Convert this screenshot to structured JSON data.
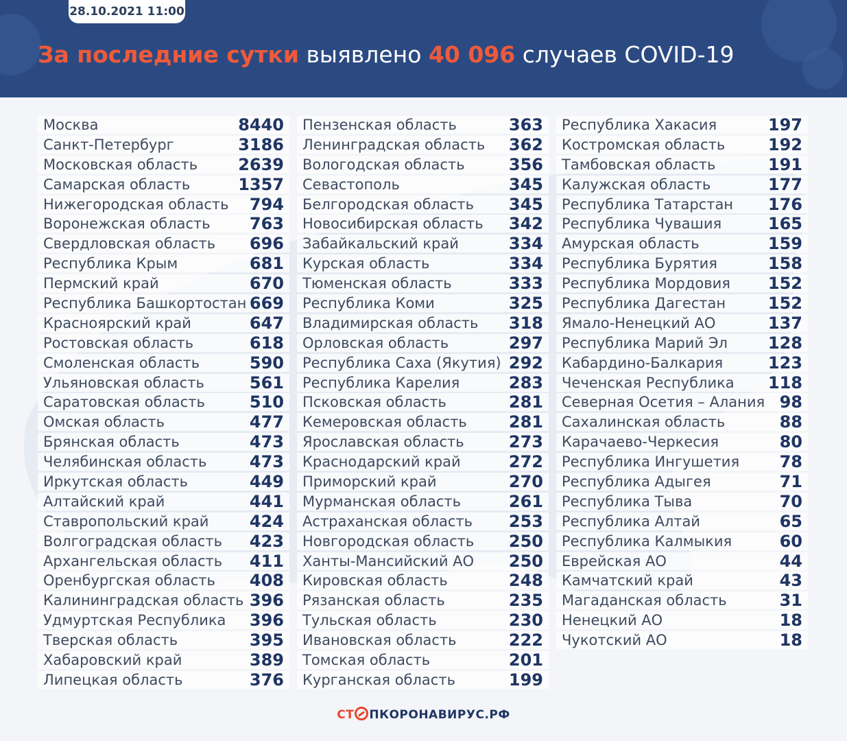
{
  "header": {
    "date": "28.10.2021 11:00",
    "headline_part1": "За последние сутки",
    "headline_part2": " выявлено ",
    "headline_count": "40 096",
    "headline_part3": " случаев COVID-19"
  },
  "colors": {
    "header_bg": "#2c4a82",
    "accent": "#ef5a3a",
    "number": "#1f3563",
    "row_bg": "#ffffff"
  },
  "columns": [
    [
      {
        "name": "Москва",
        "value": "8440"
      },
      {
        "name": "Санкт-Петербург",
        "value": "3186"
      },
      {
        "name": "Московская область",
        "value": "2639"
      },
      {
        "name": "Самарская область",
        "value": "1357"
      },
      {
        "name": "Нижегородская область",
        "value": "794"
      },
      {
        "name": "Воронежская область",
        "value": "763"
      },
      {
        "name": "Свердловская область",
        "value": "696"
      },
      {
        "name": "Республика Крым",
        "value": "681"
      },
      {
        "name": "Пермский край",
        "value": "670"
      },
      {
        "name": "Республика Башкортостан",
        "value": "669"
      },
      {
        "name": "Красноярский край",
        "value": "647"
      },
      {
        "name": "Ростовская область",
        "value": "618"
      },
      {
        "name": "Смоленская область",
        "value": "590"
      },
      {
        "name": "Ульяновская область",
        "value": "561"
      },
      {
        "name": "Саратовская область",
        "value": "510"
      },
      {
        "name": "Омская область",
        "value": "477"
      },
      {
        "name": "Брянская область",
        "value": "473"
      },
      {
        "name": "Челябинская область",
        "value": "473"
      },
      {
        "name": "Иркутская область",
        "value": "449"
      },
      {
        "name": "Алтайский край",
        "value": "441"
      },
      {
        "name": "Ставропольский край",
        "value": "424"
      },
      {
        "name": "Волгоградская область",
        "value": "423"
      },
      {
        "name": "Архангельская область",
        "value": "411"
      },
      {
        "name": "Оренбургская область",
        "value": "408"
      },
      {
        "name": "Калининградская область",
        "value": "396"
      },
      {
        "name": "Удмуртская Республика",
        "value": "396"
      },
      {
        "name": "Тверская область",
        "value": "395"
      },
      {
        "name": "Хабаровский край",
        "value": "389"
      },
      {
        "name": "Липецкая область",
        "value": "376"
      }
    ],
    [
      {
        "name": "Пензенская область",
        "value": "363"
      },
      {
        "name": "Ленинградская область",
        "value": "362"
      },
      {
        "name": "Вологодская область",
        "value": "356"
      },
      {
        "name": "Севастополь",
        "value": "345"
      },
      {
        "name": "Белгородская область",
        "value": "345"
      },
      {
        "name": "Новосибирская область",
        "value": "342"
      },
      {
        "name": "Забайкальский край",
        "value": "334"
      },
      {
        "name": "Курская область",
        "value": "334"
      },
      {
        "name": "Тюменская область",
        "value": "333"
      },
      {
        "name": "Республика Коми",
        "value": "325"
      },
      {
        "name": "Владимирская область",
        "value": "318"
      },
      {
        "name": "Орловская область",
        "value": "297"
      },
      {
        "name": "Республика Саха (Якутия)",
        "value": "292"
      },
      {
        "name": "Республика Карелия",
        "value": "283"
      },
      {
        "name": "Псковская область",
        "value": "281"
      },
      {
        "name": "Кемеровская область",
        "value": "281"
      },
      {
        "name": "Ярославская область",
        "value": "273"
      },
      {
        "name": "Краснодарский край",
        "value": "272"
      },
      {
        "name": "Приморский край",
        "value": "270"
      },
      {
        "name": "Мурманская область",
        "value": "261"
      },
      {
        "name": "Астраханская область",
        "value": "253"
      },
      {
        "name": "Новгородская область",
        "value": "250"
      },
      {
        "name": "Ханты-Мансийский АО",
        "value": "250"
      },
      {
        "name": "Кировская область",
        "value": "248"
      },
      {
        "name": "Рязанская область",
        "value": "235"
      },
      {
        "name": "Тульская область",
        "value": "230"
      },
      {
        "name": "Ивановская область",
        "value": "222"
      },
      {
        "name": "Томская область",
        "value": "201"
      },
      {
        "name": "Курганская область",
        "value": "199"
      }
    ],
    [
      {
        "name": "Республика Хакасия",
        "value": "197"
      },
      {
        "name": "Костромская область",
        "value": "192"
      },
      {
        "name": "Тамбовская область",
        "value": "191"
      },
      {
        "name": "Калужская область",
        "value": "177"
      },
      {
        "name": "Республика Татарстан",
        "value": "176"
      },
      {
        "name": "Республика Чувашия",
        "value": "165"
      },
      {
        "name": "Амурская область",
        "value": "159"
      },
      {
        "name": "Республика Бурятия",
        "value": "158"
      },
      {
        "name": "Республика Мордовия",
        "value": "152"
      },
      {
        "name": "Республика Дагестан",
        "value": "152"
      },
      {
        "name": "Ямало-Ненецкий АО",
        "value": "137"
      },
      {
        "name": "Республика Марий Эл",
        "value": "128"
      },
      {
        "name": "Кабардино-Балкария",
        "value": "123"
      },
      {
        "name": "Чеченская Республика",
        "value": "118"
      },
      {
        "name": "Северная Осетия – Алания",
        "value": "98"
      },
      {
        "name": "Сахалинская область",
        "value": "88"
      },
      {
        "name": "Карачаево-Черкесия",
        "value": "80"
      },
      {
        "name": "Республика Ингушетия",
        "value": "78"
      },
      {
        "name": "Республика Адыгея",
        "value": "71"
      },
      {
        "name": "Республика Тыва",
        "value": "70"
      },
      {
        "name": "Республика Алтай",
        "value": "65"
      },
      {
        "name": "Республика Калмыкия",
        "value": "60"
      },
      {
        "name": "Еврейская АО",
        "value": "44"
      },
      {
        "name": "Камчатский край",
        "value": "43"
      },
      {
        "name": "Магаданская область",
        "value": "31"
      },
      {
        "name": "Ненецкий АО",
        "value": "18"
      },
      {
        "name": "Чукотский АО",
        "value": "18"
      }
    ]
  ],
  "footer": {
    "logo_part1": "СТ",
    "logo_part2": "ПКОРОНАВИРУС.РФ"
  }
}
